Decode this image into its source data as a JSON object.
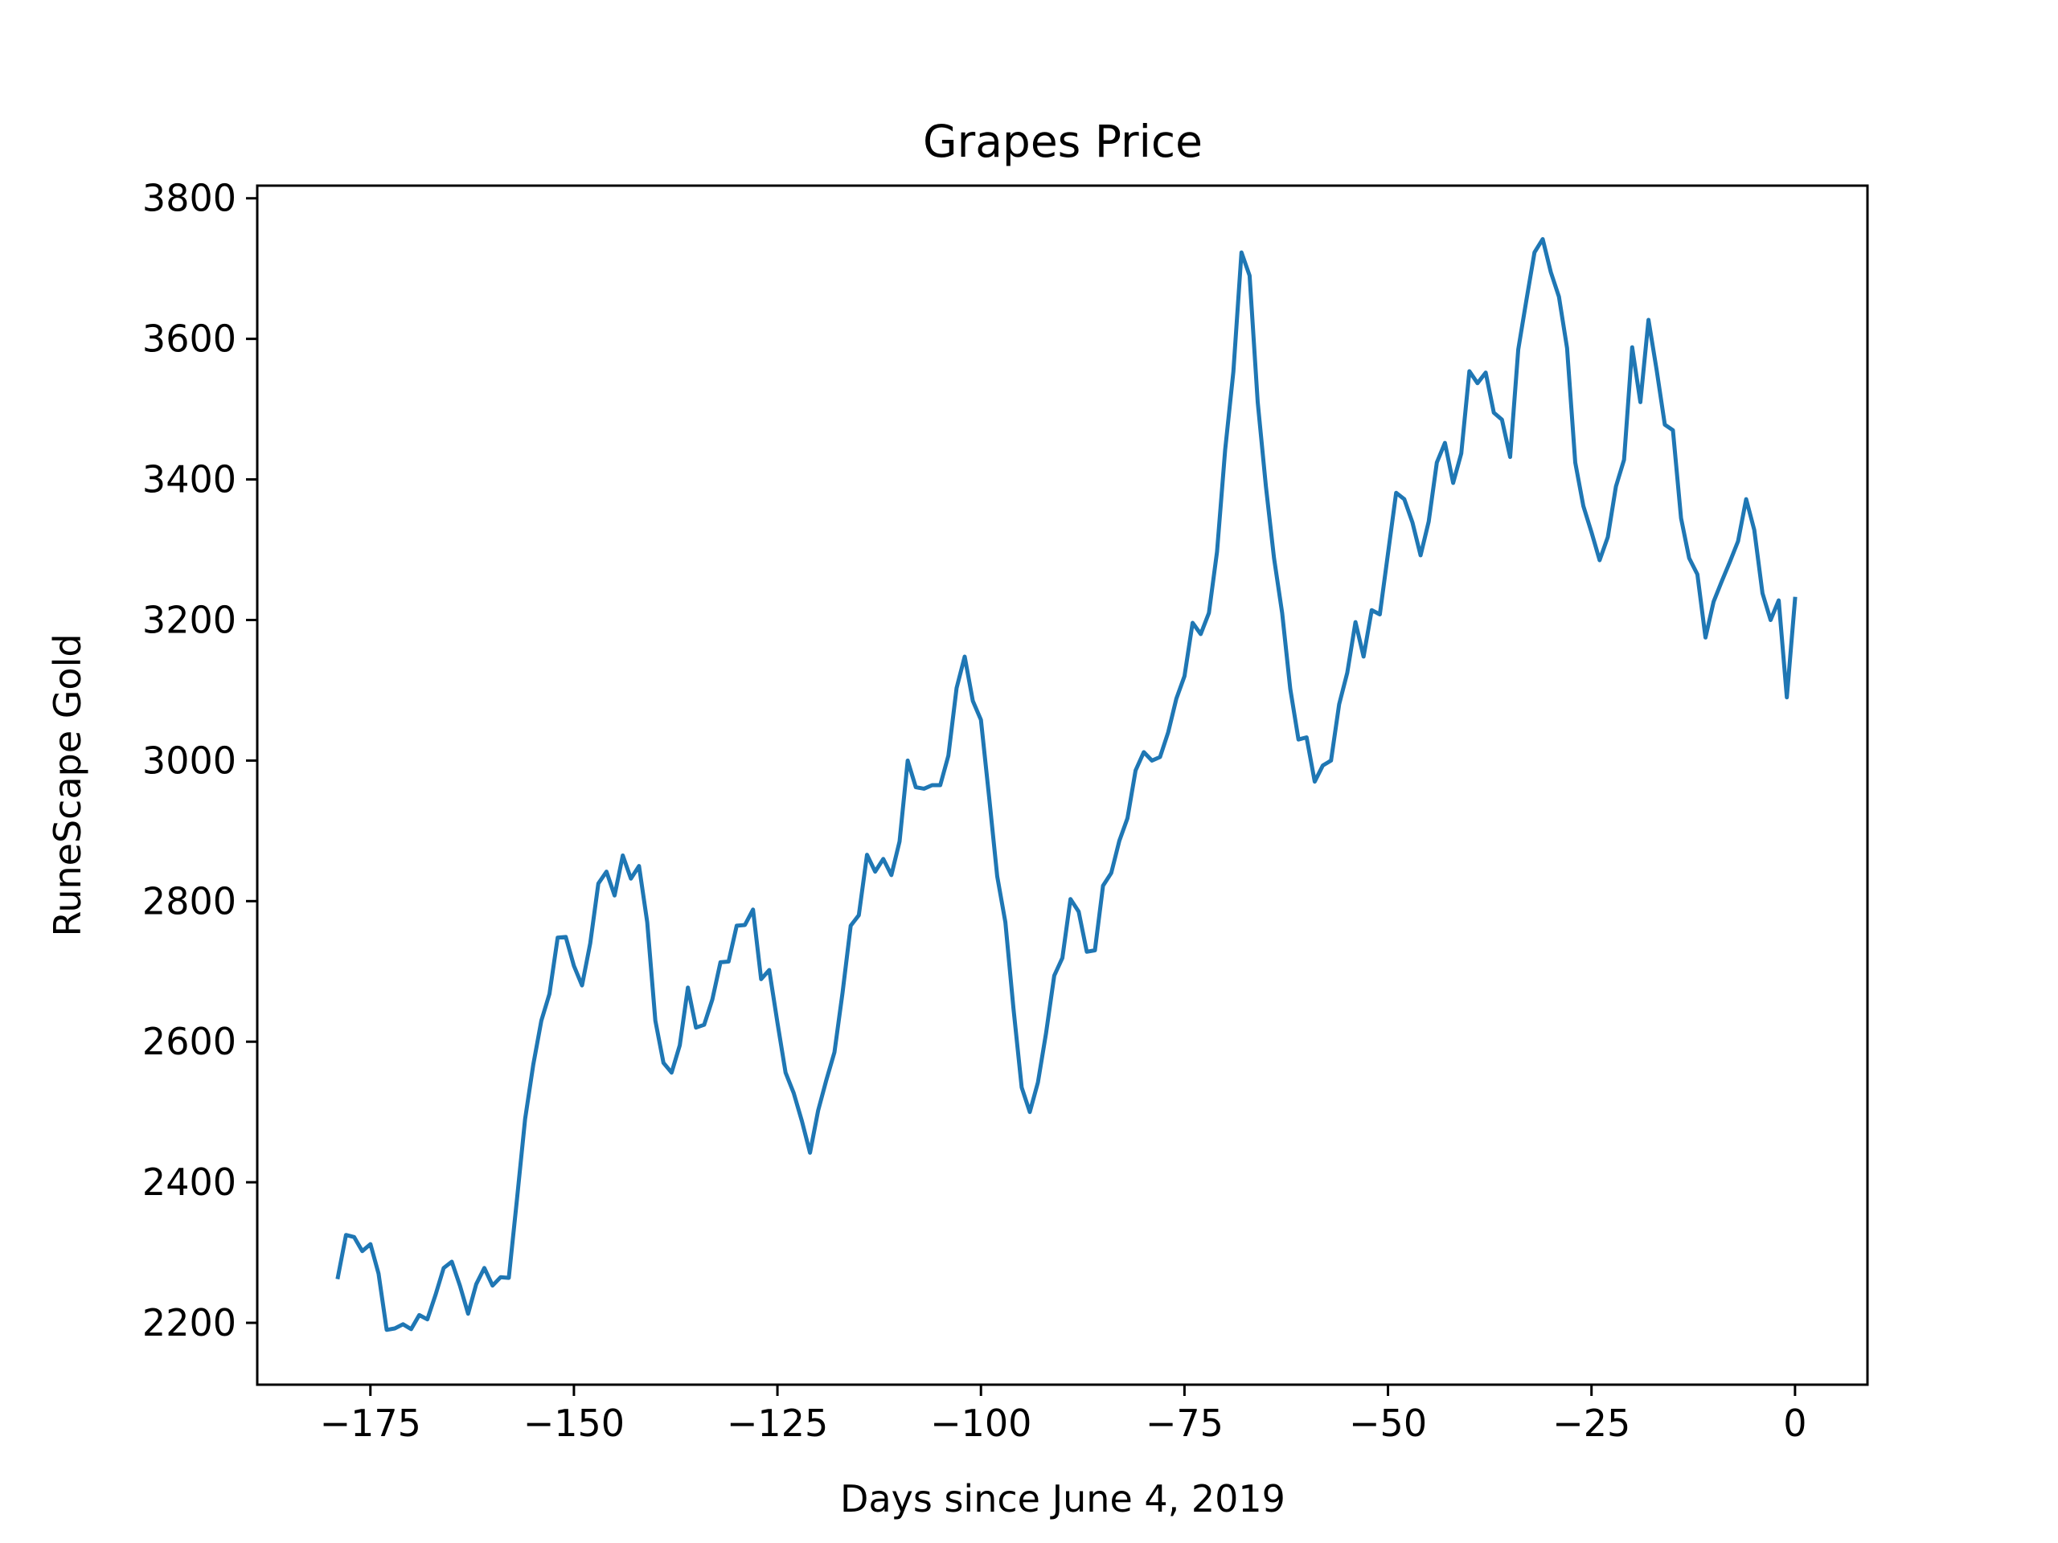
{
  "chart_data": {
    "type": "line",
    "title": "Grapes Price",
    "xlabel": "Days since June 4, 2019",
    "ylabel": "RuneScape Gold",
    "xlim": [
      -188.9,
      8.9
    ],
    "ylim": [
      2112,
      3818
    ],
    "xticks": [
      -175,
      -150,
      -125,
      -100,
      -75,
      -50,
      -25,
      0
    ],
    "xtick_labels": [
      "−175",
      "−150",
      "−125",
      "−100",
      "−75",
      "−50",
      "−25",
      "0"
    ],
    "yticks": [
      2200,
      2400,
      2600,
      2800,
      3000,
      3200,
      3400,
      3600,
      3800
    ],
    "ytick_labels": [
      "2200",
      "2400",
      "2600",
      "2800",
      "3000",
      "3200",
      "3400",
      "3600",
      "3800"
    ],
    "grid": false,
    "legend": "none",
    "line_color": "#1f77b4",
    "series": [
      {
        "x": [
          -179,
          -178,
          -177,
          -176,
          -175,
          -174,
          -173,
          -172,
          -171,
          -170,
          -169,
          -168,
          -167,
          -166,
          -165,
          -164,
          -163,
          -162,
          -161,
          -160,
          -159,
          -158,
          -157,
          -156,
          -155,
          -154,
          -153,
          -152,
          -151,
          -150,
          -149,
          -148,
          -147,
          -146,
          -145,
          -144,
          -143,
          -142,
          -141,
          -140,
          -139,
          -138,
          -137,
          -136,
          -135,
          -134,
          -133,
          -132,
          -131,
          -130,
          -129,
          -128,
          -127,
          -126,
          -125,
          -124,
          -123,
          -122,
          -121,
          -120,
          -119,
          -118,
          -117,
          -116,
          -115,
          -114,
          -113,
          -112,
          -111,
          -110,
          -109,
          -108,
          -107,
          -106,
          -105,
          -104,
          -103,
          -102,
          -101,
          -100,
          -99,
          -98,
          -97,
          -96,
          -95,
          -94,
          -93,
          -92,
          -91,
          -90,
          -89,
          -88,
          -87,
          -86,
          -85,
          -84,
          -83,
          -82,
          -81,
          -80,
          -79,
          -78,
          -77,
          -76,
          -75,
          -74,
          -73,
          -72,
          -71,
          -70,
          -69,
          -68,
          -67,
          -66,
          -65,
          -64,
          -63,
          -62,
          -61,
          -60,
          -59,
          -58,
          -57,
          -56,
          -55,
          -54,
          -53,
          -52,
          -51,
          -50,
          -49,
          -48,
          -47,
          -46,
          -45,
          -44,
          -43,
          -42,
          -41,
          -40,
          -39,
          -38,
          -37,
          -36,
          -35,
          -34,
          -33,
          -32,
          -31,
          -30,
          -29,
          -28,
          -27,
          -26,
          -25,
          -24,
          -23,
          -22,
          -21,
          -20,
          -19,
          -18,
          -17,
          -16,
          -15,
          -14,
          -13,
          -12,
          -11,
          -10,
          -9,
          -8,
          -7,
          -6,
          -5,
          -4,
          -3,
          -2,
          -1,
          0
        ],
        "values": [
          2265,
          2325,
          2322,
          2302,
          2312,
          2270,
          2190,
          2192,
          2198,
          2191,
          2211,
          2205,
          2240,
          2278,
          2287,
          2253,
          2213,
          2255,
          2278,
          2253,
          2265,
          2264,
          2375,
          2490,
          2567,
          2630,
          2668,
          2748,
          2749,
          2708,
          2680,
          2740,
          2825,
          2842,
          2808,
          2865,
          2832,
          2850,
          2770,
          2630,
          2570,
          2556,
          2595,
          2677,
          2620,
          2624,
          2660,
          2713,
          2714,
          2765,
          2766,
          2788,
          2689,
          2702,
          2627,
          2556,
          2527,
          2487,
          2442,
          2502,
          2545,
          2585,
          2670,
          2765,
          2780,
          2866,
          2842,
          2860,
          2837,
          2885,
          3000,
          2962,
          2960,
          2965,
          2965,
          3007,
          3103,
          3148,
          3085,
          3058,
          2948,
          2835,
          2770,
          2647,
          2535,
          2500,
          2542,
          2612,
          2694,
          2719,
          2803,
          2785,
          2728,
          2730,
          2822,
          2840,
          2886,
          2918,
          2986,
          3012,
          3000,
          3005,
          3040,
          3088,
          3120,
          3196,
          3180,
          3210,
          3297,
          3442,
          3553,
          3723,
          3690,
          3510,
          3390,
          3288,
          3210,
          3102,
          3030,
          3033,
          2970,
          2993,
          3000,
          3080,
          3125,
          3197,
          3148,
          3214,
          3208,
          3295,
          3381,
          3372,
          3339,
          3292,
          3340,
          3424,
          3452,
          3395,
          3437,
          3554,
          3537,
          3552,
          3495,
          3485,
          3432,
          3585,
          3655,
          3723,
          3742,
          3695,
          3660,
          3587,
          3424,
          3362,
          3325,
          3285,
          3318,
          3390,
          3428,
          3588,
          3510,
          3627,
          3556,
          3478,
          3470,
          3345,
          3288,
          3265,
          3175,
          3226,
          3255,
          3283,
          3312,
          3372,
          3328,
          3238,
          3200,
          3228,
          3090,
          3230
        ]
      }
    ]
  }
}
